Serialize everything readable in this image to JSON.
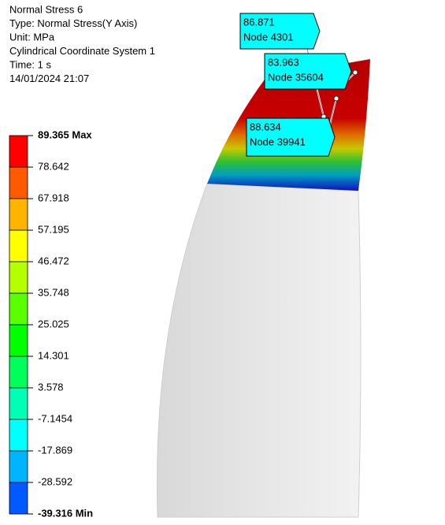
{
  "header": {
    "lines": [
      "Normal Stress 6",
      "Type: Normal Stress(Y Axis)",
      "Unit: MPa",
      "Cylindrical Coordinate System 1",
      "Time: 1 s",
      "14/01/2024 21:07"
    ]
  },
  "legend": {
    "labels": [
      "89.365 Max",
      "78.642",
      "67.918",
      "57.195",
      "46.472",
      "35.748",
      "25.025",
      "14.301",
      "3.578",
      "-7.1454",
      "-17.869",
      "-28.592",
      "-39.316 Min"
    ],
    "colors": [
      "#ff0000",
      "#ff5a00",
      "#ffb400",
      "#ffff00",
      "#b4ff00",
      "#5aff00",
      "#00ff00",
      "#00ff5a",
      "#00ffb4",
      "#00ffff",
      "#00b4ff",
      "#005aff",
      "#0000ff"
    ]
  },
  "probes": [
    {
      "value": "86.871",
      "label": "Node 4301"
    },
    {
      "value": "83.963",
      "label": "Node 35604"
    },
    {
      "value": "88.634",
      "label": "Node 39941"
    }
  ]
}
